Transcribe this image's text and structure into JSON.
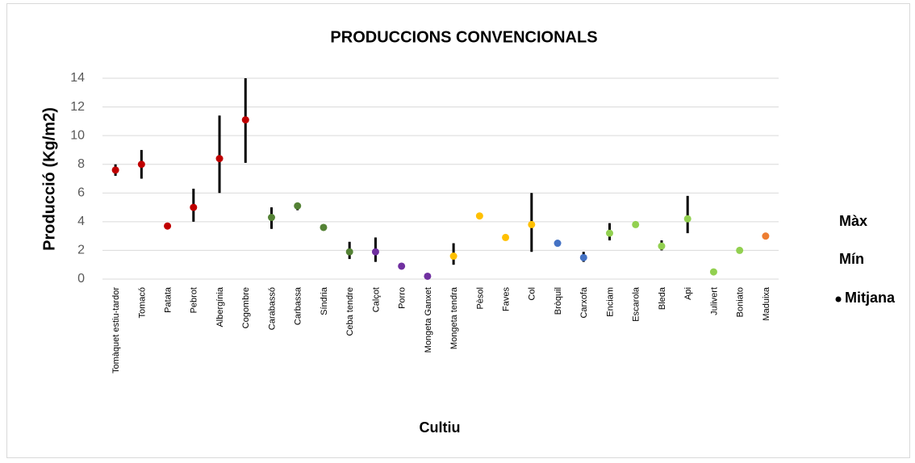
{
  "chart_data": {
    "type": "hilo",
    "title": "PRODUCCIONS CONVENCIONALS",
    "x_label": "Cultiu",
    "y_label": "Producció (Kg/m2)",
    "categories": [
      "Tomàquet estiu-tardor",
      "Tomacó",
      "Patata",
      "Pebrot",
      "Albergínia",
      "Cogombre",
      "Carabassó",
      "Carbassa",
      "Síndria",
      "Ceba tendre",
      "Calçot",
      "Porro",
      "Mongeta Ganxet",
      "Mongeta tendra",
      "Pèsol",
      "Faves",
      "Col",
      "Bròquil",
      "Carxofa",
      "Enciam",
      "Escarola",
      "Bleda",
      "Api",
      "Julivert",
      "Boniato",
      "Maduixa"
    ],
    "series": [
      {
        "name": "Màx",
        "color": "#000000",
        "values": [
          8.0,
          9.0,
          3.8,
          6.3,
          11.4,
          14.0,
          5.0,
          5.3,
          3.6,
          2.6,
          2.9,
          1.1,
          0.2,
          2.5,
          4.5,
          2.9,
          6.0,
          2.6,
          1.9,
          3.9,
          3.8,
          2.7,
          5.8,
          0.5,
          2.0,
          3.0
        ]
      },
      {
        "name": "Mín",
        "color": "#000000",
        "values": [
          7.2,
          7.0,
          3.6,
          4.0,
          6.0,
          8.1,
          3.5,
          4.8,
          3.6,
          1.4,
          1.2,
          0.8,
          0.2,
          1.0,
          4.2,
          2.9,
          1.9,
          2.4,
          1.2,
          2.7,
          3.8,
          2.0,
          3.2,
          0.5,
          2.0,
          3.0
        ]
      },
      {
        "name": "Mitjana",
        "color": "#000000",
        "values": [
          7.6,
          8.0,
          3.7,
          5.0,
          8.4,
          11.1,
          4.3,
          5.1,
          3.6,
          1.9,
          1.9,
          0.9,
          0.2,
          1.6,
          4.4,
          2.9,
          3.8,
          2.5,
          1.5,
          3.2,
          3.8,
          2.3,
          4.2,
          0.5,
          2.0,
          3.0
        ],
        "colors": [
          "#c00000",
          "#c00000",
          "#c00000",
          "#c00000",
          "#c00000",
          "#c00000",
          "#548235",
          "#548235",
          "#548235",
          "#548235",
          "#7030a0",
          "#7030a0",
          "#7030a0",
          "#ffc000",
          "#ffc000",
          "#ffc000",
          "#ffc000",
          "#4472c4",
          "#4472c4",
          "#92d050",
          "#92d050",
          "#92d050",
          "#92d050",
          "#92d050",
          "#92d050",
          "#ed7d31"
        ]
      }
    ],
    "ylim": [
      0,
      14
    ],
    "yticks": [
      0,
      2,
      4,
      6,
      8,
      10,
      12,
      14
    ],
    "grid": true,
    "legend": "right"
  }
}
